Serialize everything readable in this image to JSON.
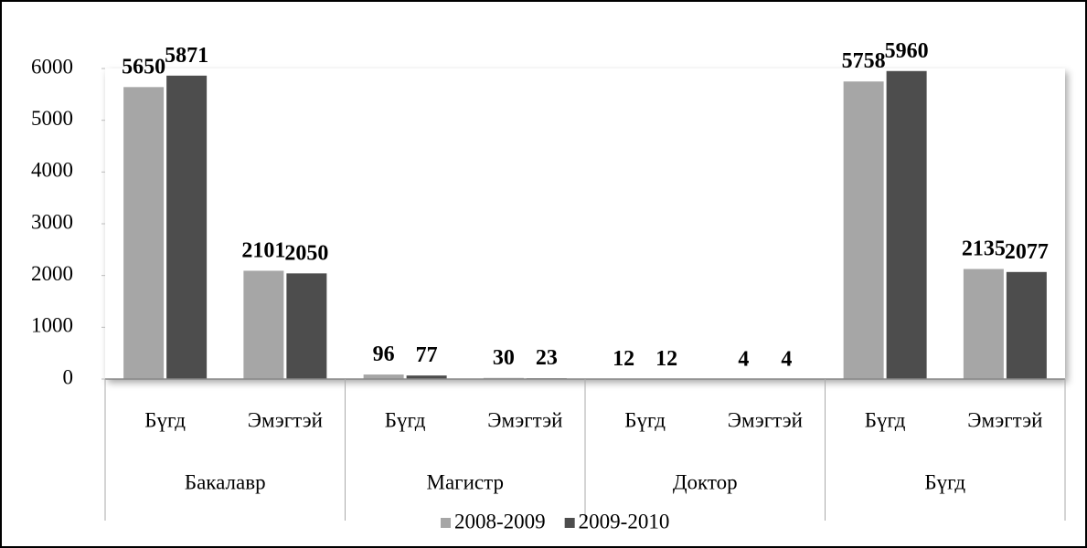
{
  "chart_data": {
    "type": "bar",
    "categories": [
      "Бүгд",
      "Эмэгтэй",
      "Бүгд",
      "Эмэгтэй",
      "Бүгд",
      "Эмэгтэй",
      "Бүгд",
      "Эмэгтэй"
    ],
    "category_groups": [
      "Бакалавр",
      "Магистр",
      "Доктор",
      "Бүгд"
    ],
    "series": [
      {
        "name": "2008-2009",
        "color": "#a6a6a6",
        "values": [
          5650,
          2101,
          96,
          30,
          12,
          4,
          5758,
          2135
        ]
      },
      {
        "name": "2009-2010",
        "color": "#4d4d4d",
        "values": [
          5871,
          2050,
          77,
          23,
          12,
          4,
          5960,
          2077
        ]
      }
    ],
    "ylim": [
      0,
      6000
    ],
    "yticks": [
      0,
      1000,
      2000,
      3000,
      4000,
      5000,
      6000
    ],
    "legend": "bottom"
  }
}
